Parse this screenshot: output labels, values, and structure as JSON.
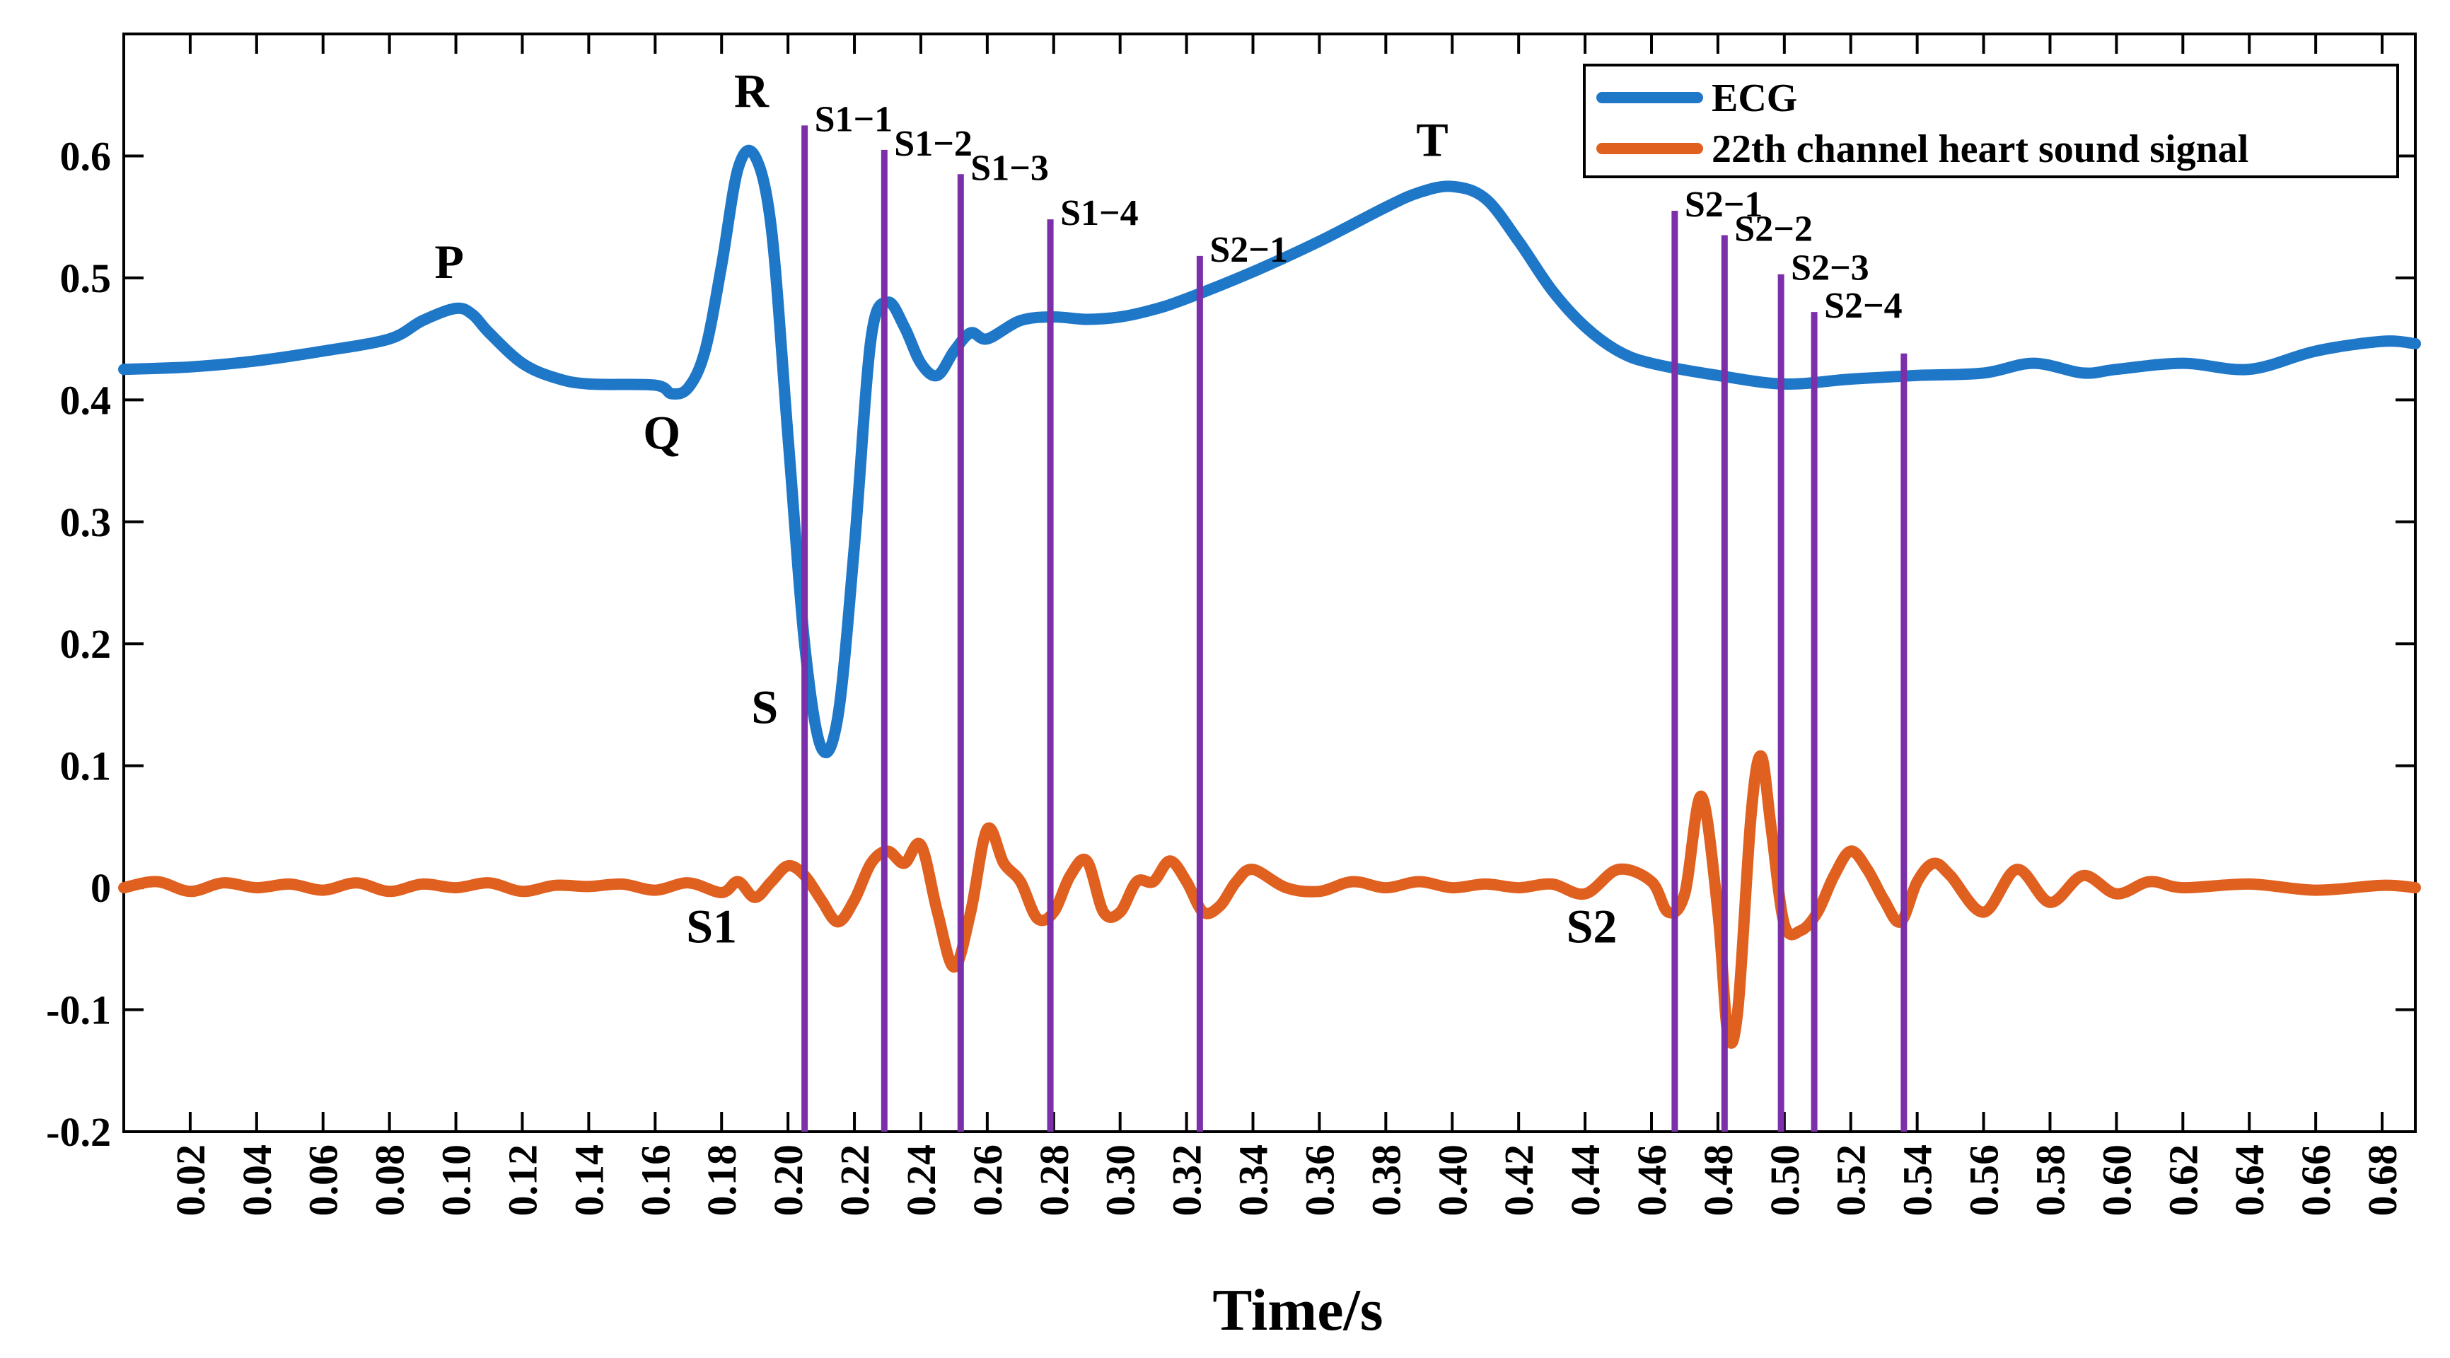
{
  "chart_data": {
    "type": "line",
    "title": "",
    "xlabel": "Time/s",
    "ylabel": "",
    "xlim": [
      0,
      0.69
    ],
    "ylim": [
      -0.2,
      0.7
    ],
    "grid": false,
    "legend_position": "top-right",
    "colors": {
      "ecg": "#1f77c8",
      "heart_sound": "#e06020",
      "markers": "#7b2fa8",
      "axis": "#000000"
    },
    "x_ticks": [
      "0.02",
      "0.04",
      "0.06",
      "0.08",
      "0.10",
      "0.12",
      "0.14",
      "0.16",
      "0.18",
      "0.20",
      "0.22",
      "0.24",
      "0.26",
      "0.28",
      "0.30",
      "0.32",
      "0.34",
      "0.36",
      "0.38",
      "0.40",
      "0.42",
      "0.44",
      "0.46",
      "0.48",
      "0.50",
      "0.52",
      "0.54",
      "0.56",
      "0.58",
      "0.60",
      "0.62",
      "0.64",
      "0.66",
      "0.68"
    ],
    "y_ticks": [
      "-0.2",
      "-0.1",
      "0",
      "0.1",
      "0.2",
      "0.3",
      "0.4",
      "0.5",
      "0.6"
    ],
    "series": [
      {
        "name": "ECG",
        "color": "#1f77c8",
        "x": [
          0.0,
          0.02,
          0.04,
          0.06,
          0.08,
          0.09,
          0.1,
          0.105,
          0.11,
          0.12,
          0.13,
          0.14,
          0.16,
          0.165,
          0.17,
          0.175,
          0.18,
          0.185,
          0.19,
          0.195,
          0.2,
          0.205,
          0.21,
          0.215,
          0.22,
          0.225,
          0.23,
          0.235,
          0.24,
          0.245,
          0.25,
          0.255,
          0.26,
          0.27,
          0.28,
          0.29,
          0.3,
          0.31,
          0.32,
          0.34,
          0.36,
          0.38,
          0.39,
          0.4,
          0.41,
          0.42,
          0.43,
          0.44,
          0.45,
          0.46,
          0.48,
          0.5,
          0.52,
          0.54,
          0.56,
          0.575,
          0.59,
          0.6,
          0.62,
          0.64,
          0.66,
          0.68,
          0.69
        ],
        "values": [
          0.425,
          0.427,
          0.432,
          0.44,
          0.45,
          0.465,
          0.475,
          0.47,
          0.455,
          0.43,
          0.418,
          0.413,
          0.412,
          0.405,
          0.41,
          0.44,
          0.51,
          0.59,
          0.6,
          0.54,
          0.37,
          0.2,
          0.115,
          0.14,
          0.28,
          0.45,
          0.48,
          0.46,
          0.43,
          0.42,
          0.44,
          0.455,
          0.45,
          0.465,
          0.468,
          0.466,
          0.468,
          0.474,
          0.483,
          0.505,
          0.53,
          0.558,
          0.57,
          0.575,
          0.565,
          0.53,
          0.49,
          0.46,
          0.44,
          0.43,
          0.42,
          0.413,
          0.417,
          0.42,
          0.422,
          0.43,
          0.422,
          0.425,
          0.43,
          0.425,
          0.44,
          0.448,
          0.446
        ]
      },
      {
        "name": "22th channel heart sound signal",
        "color": "#e06020",
        "x": [
          0.0,
          0.01,
          0.02,
          0.03,
          0.04,
          0.05,
          0.06,
          0.07,
          0.08,
          0.09,
          0.1,
          0.11,
          0.12,
          0.13,
          0.14,
          0.15,
          0.16,
          0.17,
          0.18,
          0.185,
          0.19,
          0.195,
          0.2,
          0.205,
          0.21,
          0.215,
          0.22,
          0.225,
          0.23,
          0.235,
          0.24,
          0.245,
          0.25,
          0.255,
          0.26,
          0.265,
          0.27,
          0.275,
          0.28,
          0.285,
          0.29,
          0.295,
          0.3,
          0.305,
          0.31,
          0.315,
          0.32,
          0.325,
          0.33,
          0.335,
          0.34,
          0.35,
          0.36,
          0.37,
          0.38,
          0.39,
          0.4,
          0.41,
          0.42,
          0.43,
          0.44,
          0.45,
          0.46,
          0.465,
          0.47,
          0.475,
          0.48,
          0.483,
          0.486,
          0.49,
          0.493,
          0.496,
          0.5,
          0.505,
          0.51,
          0.515,
          0.52,
          0.525,
          0.53,
          0.535,
          0.54,
          0.545,
          0.55,
          0.56,
          0.57,
          0.58,
          0.59,
          0.6,
          0.61,
          0.62,
          0.64,
          0.66,
          0.68,
          0.69
        ],
        "values": [
          0.0,
          0.005,
          -0.003,
          0.004,
          0.0,
          0.003,
          -0.002,
          0.004,
          -0.003,
          0.003,
          0.0,
          0.004,
          -0.003,
          0.002,
          0.001,
          0.003,
          -0.002,
          0.004,
          -0.004,
          0.005,
          -0.008,
          0.005,
          0.018,
          0.01,
          -0.01,
          -0.028,
          -0.01,
          0.02,
          0.03,
          0.02,
          0.035,
          -0.02,
          -0.065,
          -0.02,
          0.048,
          0.02,
          0.005,
          -0.025,
          -0.02,
          0.01,
          0.022,
          -0.02,
          -0.02,
          0.005,
          0.005,
          0.022,
          0.005,
          -0.02,
          -0.015,
          0.005,
          0.015,
          0.0,
          -0.003,
          0.005,
          0.0,
          0.005,
          0.0,
          0.003,
          0.0,
          0.003,
          -0.005,
          0.015,
          0.005,
          -0.02,
          -0.005,
          0.075,
          -0.02,
          -0.12,
          -0.1,
          0.06,
          0.108,
          0.05,
          -0.03,
          -0.035,
          -0.02,
          0.01,
          0.03,
          0.015,
          -0.01,
          -0.028,
          0.005,
          0.02,
          0.01,
          -0.02,
          0.015,
          -0.012,
          0.01,
          -0.005,
          0.005,
          0.0,
          0.003,
          -0.002,
          0.002,
          0.0
        ]
      }
    ],
    "vertical_markers": [
      {
        "label": "S1−1",
        "x": 0.205,
        "top": 0.625
      },
      {
        "label": "S1−2",
        "x": 0.229,
        "top": 0.605
      },
      {
        "label": "S1−3",
        "x": 0.252,
        "top": 0.585
      },
      {
        "label": "S1−4",
        "x": 0.279,
        "top": 0.548
      },
      {
        "label": "S2−1",
        "x": 0.324,
        "top": 0.518
      },
      {
        "label": "S2−1",
        "x": 0.467,
        "top": 0.555
      },
      {
        "label": "S2−2",
        "x": 0.482,
        "top": 0.535
      },
      {
        "label": "S2−3",
        "x": 0.499,
        "top": 0.503
      },
      {
        "label": "S2−4",
        "x": 0.509,
        "top": 0.472
      },
      {
        "label": "",
        "x": 0.536,
        "top": 0.438
      }
    ],
    "annotations": [
      {
        "text": "P",
        "x": 0.098,
        "y": 0.5
      },
      {
        "text": "Q",
        "x": 0.162,
        "y": 0.36
      },
      {
        "text": "R",
        "x": 0.189,
        "y": 0.64
      },
      {
        "text": "S",
        "x": 0.193,
        "y": 0.135
      },
      {
        "text": "T",
        "x": 0.394,
        "y": 0.6
      },
      {
        "text": "S1",
        "x": 0.177,
        "y": -0.045
      },
      {
        "text": "S2",
        "x": 0.442,
        "y": -0.045
      }
    ]
  }
}
